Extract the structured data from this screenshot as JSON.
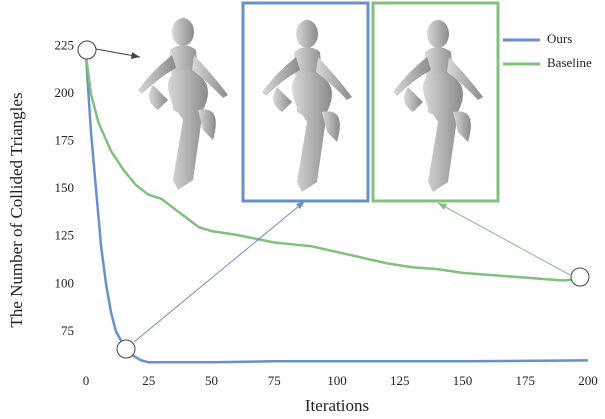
{
  "chart_data": {
    "type": "line",
    "xlabel": "Iterations",
    "ylabel": "The Number of Collided Triangles",
    "xlim": [
      0,
      200
    ],
    "xticks": [
      0,
      25,
      50,
      75,
      100,
      125,
      150,
      175,
      200
    ],
    "ylim": [
      54.4,
      229
    ],
    "yticks": [
      75,
      100,
      125,
      150,
      175,
      200,
      225
    ],
    "legend": "upper right",
    "series": [
      {
        "name": "Ours",
        "color": "#6b8fc9",
        "x": [
          0,
          2,
          4,
          6,
          8,
          10,
          12,
          15,
          18,
          22,
          25,
          50,
          75,
          100,
          150,
          200
        ],
        "values": [
          220,
          180,
          150,
          120,
          100,
          85,
          75,
          68,
          63,
          60,
          59,
          59,
          59.5,
          59.5,
          59.5,
          60
        ]
      },
      {
        "name": "Baseline",
        "color": "#82c07f",
        "x": [
          0,
          2,
          5,
          10,
          15,
          20,
          25,
          30,
          35,
          40,
          45,
          50,
          60,
          75,
          90,
          100,
          110,
          120,
          130,
          140,
          150,
          160,
          175,
          190,
          200
        ],
        "values": [
          220,
          200,
          185,
          170,
          160,
          152,
          147,
          145,
          140,
          135,
          130,
          128,
          126,
          122,
          120,
          117,
          114,
          111,
          109,
          108,
          106,
          105,
          103.5,
          102,
          103
        ]
      }
    ]
  }
}
